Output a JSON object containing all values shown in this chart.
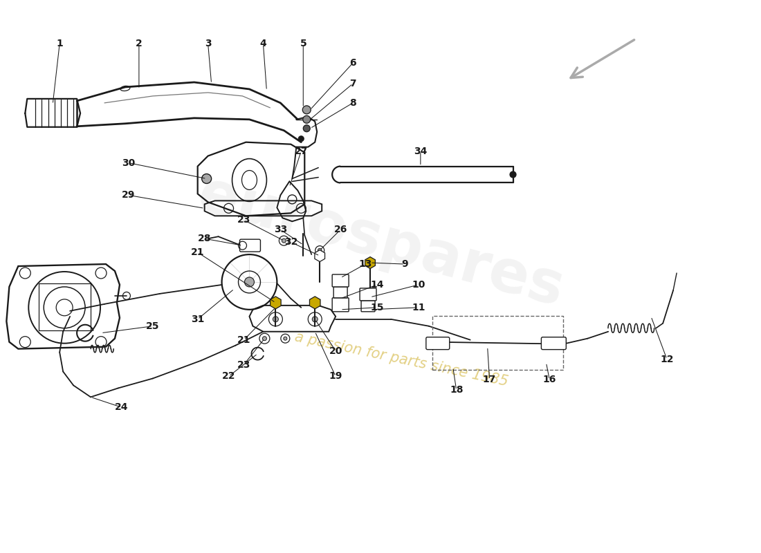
{
  "bg_color": "#ffffff",
  "line_color": "#1a1a1a",
  "gray": "#666666",
  "watermark1": "eurospares",
  "watermark2": "a passion for parts since 1985",
  "wm1_color": "#cccccc",
  "wm2_color": "#d4c060",
  "arrow_color": "#aaaaaa",
  "label_fontsize": 10,
  "gold": "#c8a800"
}
